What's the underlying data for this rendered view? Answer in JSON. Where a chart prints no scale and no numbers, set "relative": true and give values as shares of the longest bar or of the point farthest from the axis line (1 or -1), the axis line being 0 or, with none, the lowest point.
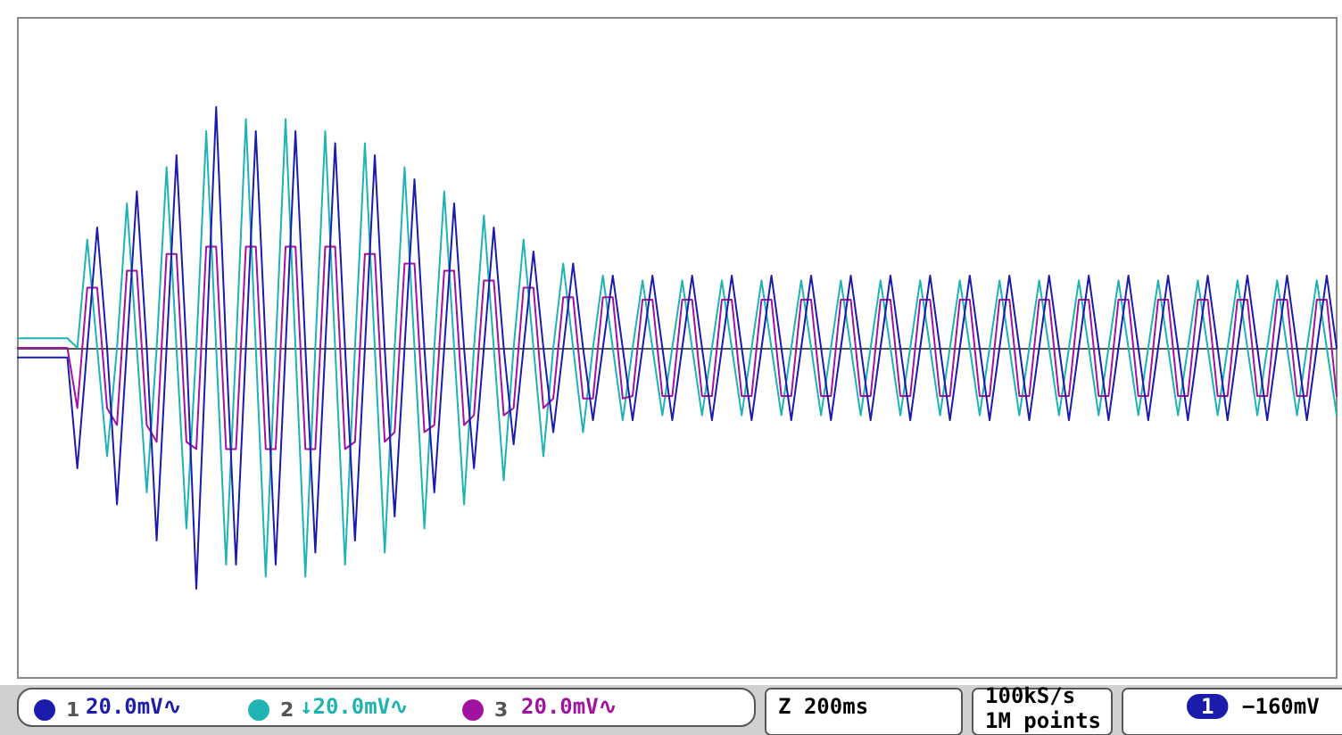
{
  "chart_data": {
    "type": "line",
    "relative": true,
    "grid": false,
    "legend": "bottom left",
    "marker": "none",
    "line_style": "solid",
    "categories": [
      null,
      null,
      null,
      null,
      null,
      null,
      null,
      null,
      null,
      null,
      null,
      null,
      null,
      null,
      null,
      null,
      null,
      null,
      null,
      null,
      null,
      null,
      null,
      null,
      null,
      null,
      null,
      null,
      null,
      null,
      null,
      null,
      null,
      null,
      null,
      null,
      null,
      null,
      null,
      null,
      null,
      null,
      null,
      null,
      null,
      null,
      null,
      null,
      null,
      null,
      null,
      null,
      null,
      null,
      null,
      null,
      null,
      null,
      null,
      null,
      null,
      null,
      null,
      null,
      null,
      null,
      null,
      null,
      null,
      null,
      null,
      null,
      null,
      null,
      null,
      null,
      null,
      null,
      null,
      null,
      null,
      null,
      null,
      null,
      null,
      null,
      null,
      null,
      null,
      null,
      null,
      null,
      null,
      null,
      null,
      null,
      null,
      null,
      null,
      null,
      null,
      null,
      null,
      null,
      null,
      null,
      null,
      null,
      null,
      null,
      null,
      null,
      null,
      null,
      null,
      null,
      null,
      null,
      null,
      null,
      null,
      null,
      null,
      null,
      null,
      null,
      null,
      null,
      null,
      null,
      null,
      null,
      null,
      null
    ],
    "series": [
      {
        "name": "2",
        "color": "#1fb3b3",
        "values": [
          0.04,
          0.04,
          0.04,
          0.04,
          0.04,
          0.04,
          0,
          0.45,
          0,
          -0.45,
          0,
          0.6,
          0,
          -0.6,
          0,
          0.75,
          0,
          -0.75,
          0,
          0.9,
          0,
          -0.9,
          0,
          0.95,
          0,
          -0.95,
          0,
          0.95,
          0,
          -0.95,
          0,
          0.9,
          0,
          -0.9,
          0,
          0.85,
          0,
          -0.85,
          0,
          0.75,
          0,
          -0.75,
          0,
          0.65,
          0,
          -0.65,
          0,
          0.55,
          0,
          -0.55,
          0,
          0.45,
          0,
          -0.45,
          0,
          0.35,
          0,
          -0.35,
          0,
          0.3,
          0,
          -0.3,
          0,
          0.28,
          0,
          -0.28,
          0,
          0.28,
          0,
          -0.28,
          0,
          0.28,
          0,
          -0.28,
          0,
          0.28,
          0,
          -0.28,
          0,
          0.28,
          0,
          -0.28,
          0,
          0.28,
          0,
          -0.28,
          0,
          0.28,
          0,
          -0.28,
          0,
          0.28,
          0,
          -0.28,
          0,
          0.28,
          0,
          -0.28,
          0,
          0.28,
          0,
          -0.28,
          0,
          0.28,
          0,
          -0.28,
          0,
          0.28,
          0,
          -0.28,
          0,
          0.28,
          0,
          -0.28,
          0,
          0.28,
          0,
          -0.28,
          0,
          0.28,
          0,
          -0.28,
          0,
          0.28,
          0,
          -0.28,
          0,
          0.28,
          0,
          -0.28,
          0,
          0.28,
          0,
          -0.28
        ]
      },
      {
        "name": "3",
        "color": "#a012a0",
        "values": [
          0,
          0,
          0,
          0,
          0,
          0,
          -0.25,
          0.25,
          0.25,
          -0.25,
          -0.32,
          0.32,
          0.32,
          -0.32,
          -0.39,
          0.39,
          0.39,
          -0.39,
          -0.42,
          0.42,
          0.42,
          -0.42,
          -0.42,
          0.42,
          0.42,
          -0.42,
          -0.42,
          0.42,
          0.42,
          -0.42,
          -0.42,
          0.42,
          0.42,
          -0.42,
          -0.39,
          0.39,
          0.39,
          -0.39,
          -0.35,
          0.35,
          0.35,
          -0.35,
          -0.32,
          0.32,
          0.32,
          -0.32,
          -0.28,
          0.28,
          0.28,
          -0.28,
          -0.25,
          0.25,
          0.25,
          -0.25,
          -0.21,
          0.21,
          0.21,
          -0.21,
          -0.21,
          0.21,
          0.21,
          -0.21,
          -0.2,
          0.2,
          0.2,
          -0.2,
          -0.2,
          0.2,
          0.2,
          -0.2,
          -0.2,
          0.2,
          0.2,
          -0.2,
          -0.2,
          0.2,
          0.2,
          -0.2,
          -0.2,
          0.2,
          0.2,
          -0.2,
          -0.2,
          0.2,
          0.2,
          -0.2,
          -0.2,
          0.2,
          0.2,
          -0.2,
          -0.2,
          0.2,
          0.2,
          -0.2,
          -0.2,
          0.2,
          0.2,
          -0.2,
          -0.2,
          0.2,
          0.2,
          -0.2,
          -0.2,
          0.2,
          0.2,
          -0.2,
          -0.2,
          0.2,
          0.2,
          -0.2,
          -0.2,
          0.2,
          0.2,
          -0.2,
          -0.2,
          0.2,
          0.2,
          -0.2,
          -0.2,
          0.2,
          0.2,
          -0.2,
          -0.2,
          0.2,
          0.2,
          -0.2,
          -0.2,
          0.2,
          0.2,
          -0.2,
          -0.2,
          0.2,
          0.2,
          -0.2
        ]
      },
      {
        "name": "1",
        "color": "#1c1cac",
        "values": [
          -0.04,
          -0.04,
          -0.04,
          -0.04,
          -0.04,
          -0.04,
          -0.5,
          0,
          0.5,
          0,
          -0.65,
          0,
          0.65,
          0,
          -0.8,
          0,
          0.8,
          0,
          -1,
          0,
          1,
          0,
          -0.9,
          0,
          0.9,
          0,
          -0.9,
          0,
          0.9,
          0,
          -0.85,
          0,
          0.85,
          0,
          -0.8,
          0,
          0.8,
          0,
          -0.7,
          0,
          0.7,
          0,
          -0.6,
          0,
          0.6,
          0,
          -0.5,
          0,
          0.5,
          0,
          -0.4,
          0,
          0.4,
          0,
          -0.35,
          0,
          0.35,
          0,
          -0.3,
          0,
          0.3,
          0,
          -0.3,
          0,
          0.3,
          0,
          -0.3,
          0,
          0.3,
          0,
          -0.3,
          0,
          0.3,
          0,
          -0.3,
          0,
          0.3,
          0,
          -0.3,
          0,
          0.3,
          0,
          -0.3,
          0,
          0.3,
          0,
          -0.3,
          0,
          0.3,
          0,
          -0.3,
          0,
          0.3,
          0,
          -0.3,
          0,
          0.3,
          0,
          -0.3,
          0,
          0.3,
          0,
          -0.3,
          0,
          0.3,
          0,
          -0.3,
          0,
          0.3,
          0,
          -0.3,
          0,
          0.3,
          0,
          -0.3,
          0,
          0.3,
          0,
          -0.3,
          0,
          0.3,
          0,
          -0.3,
          0,
          0.3,
          0,
          -0.3,
          0,
          0.3,
          0,
          -0.3,
          0,
          0.3,
          0
        ]
      }
    ],
    "annotations": [
      "20.0mV∿",
      "↓20.0mV∿",
      "20.0mV∿",
      "Z 200ms",
      "100kS/s",
      "1M points",
      "1",
      "−160mV"
    ]
  }
}
